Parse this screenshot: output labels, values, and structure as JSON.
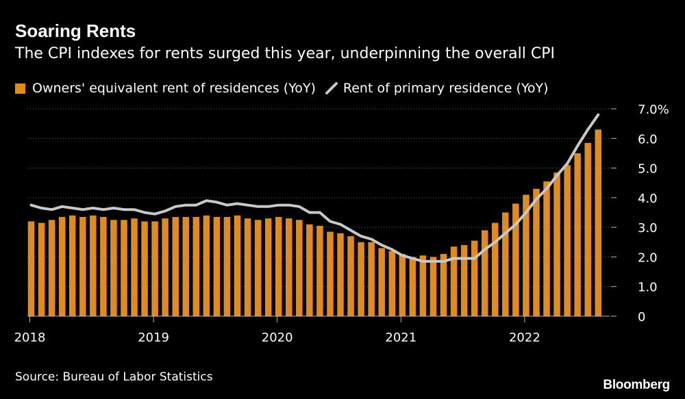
{
  "header": {
    "title": "Soaring Rents",
    "subtitle": "The CPI indexes for rents surged this year, underpinning the overall CPI"
  },
  "footer": {
    "source": "Source: Bureau of Labor Statistics",
    "brand": "Bloomberg"
  },
  "colors": {
    "background": "#000000",
    "bar": "#e08b1a",
    "line": "#c8c8c8",
    "text": "#ffffff",
    "grid": "#666666"
  },
  "chart_data": {
    "type": "bar",
    "title": "Soaring Rents",
    "subtitle": "The CPI indexes for rents surged this year, underpinning the overall CPI",
    "xlabel": "",
    "ylabel": "",
    "grid": "horizontal dotted",
    "legend_position": "top-left",
    "ylim": [
      0,
      7
    ],
    "yticks": [
      "0",
      "1.0",
      "2.0",
      "3.0",
      "4.0",
      "5.0",
      "6.0",
      "7.0%"
    ],
    "year_ticks": [
      "2018",
      "2019",
      "2020",
      "2021",
      "2022"
    ],
    "x": [
      "2018-01",
      "2018-02",
      "2018-03",
      "2018-04",
      "2018-05",
      "2018-06",
      "2018-07",
      "2018-08",
      "2018-09",
      "2018-10",
      "2018-11",
      "2018-12",
      "2019-01",
      "2019-02",
      "2019-03",
      "2019-04",
      "2019-05",
      "2019-06",
      "2019-07",
      "2019-08",
      "2019-09",
      "2019-10",
      "2019-11",
      "2019-12",
      "2020-01",
      "2020-02",
      "2020-03",
      "2020-04",
      "2020-05",
      "2020-06",
      "2020-07",
      "2020-08",
      "2020-09",
      "2020-10",
      "2020-11",
      "2020-12",
      "2021-01",
      "2021-02",
      "2021-03",
      "2021-04",
      "2021-05",
      "2021-06",
      "2021-07",
      "2021-08",
      "2021-09",
      "2021-10",
      "2021-11",
      "2021-12",
      "2022-01",
      "2022-02",
      "2022-03",
      "2022-04",
      "2022-05",
      "2022-06",
      "2022-07",
      "2022-08"
    ],
    "series": [
      {
        "name": "Owners' equivalent rent of residences (YoY)",
        "kind": "bar",
        "values": [
          3.2,
          3.15,
          3.25,
          3.35,
          3.4,
          3.35,
          3.4,
          3.35,
          3.25,
          3.25,
          3.3,
          3.2,
          3.2,
          3.3,
          3.35,
          3.35,
          3.35,
          3.4,
          3.35,
          3.35,
          3.4,
          3.3,
          3.25,
          3.3,
          3.35,
          3.3,
          3.25,
          3.1,
          3.05,
          2.85,
          2.8,
          2.7,
          2.5,
          2.5,
          2.3,
          2.2,
          2.1,
          2.0,
          2.05,
          2.0,
          2.1,
          2.35,
          2.4,
          2.55,
          2.9,
          3.15,
          3.5,
          3.8,
          4.1,
          4.3,
          4.55,
          4.85,
          5.1,
          5.5,
          5.85,
          6.3
        ]
      },
      {
        "name": "Rent of primary residence (YoY)",
        "kind": "line",
        "values": [
          3.75,
          3.65,
          3.6,
          3.7,
          3.65,
          3.6,
          3.65,
          3.6,
          3.65,
          3.6,
          3.6,
          3.5,
          3.45,
          3.55,
          3.7,
          3.75,
          3.75,
          3.9,
          3.85,
          3.75,
          3.8,
          3.75,
          3.7,
          3.7,
          3.75,
          3.75,
          3.7,
          3.5,
          3.5,
          3.2,
          3.1,
          2.9,
          2.7,
          2.6,
          2.4,
          2.25,
          2.05,
          1.95,
          1.85,
          1.85,
          1.85,
          1.95,
          1.95,
          1.95,
          2.25,
          2.5,
          2.8,
          3.1,
          3.5,
          3.95,
          4.3,
          4.75,
          5.15,
          5.75,
          6.3,
          6.8
        ]
      }
    ]
  }
}
